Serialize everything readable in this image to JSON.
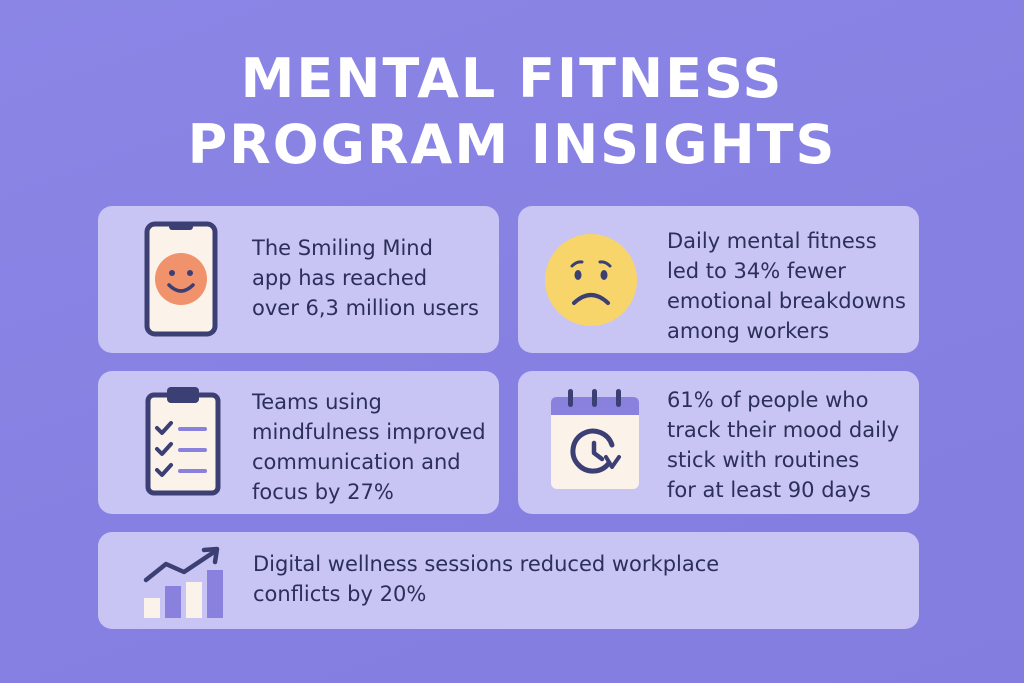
{
  "title": {
    "line1": "MENTAL FITNESS",
    "line2": "PROGRAM INSIGHTS"
  },
  "cards": [
    {
      "icon": "smartphone-smiley-icon",
      "text_lines": [
        "The Smiling Mind",
        "app has reached",
        "over 6,3 million users"
      ]
    },
    {
      "icon": "worried-face-icon",
      "text_lines": [
        "Daily mental fitness",
        "led to 34% fewer",
        "emotional breakdowns",
        "among workers"
      ]
    },
    {
      "icon": "clipboard-checklist-icon",
      "text_lines": [
        "Teams using",
        "mindfulness improved",
        "communication and",
        "focus by 27%"
      ]
    },
    {
      "icon": "calendar-refresh-icon",
      "text_lines": [
        "61% of people who",
        "track their mood daily",
        "stick with routines",
        "for at least 90 days"
      ]
    },
    {
      "icon": "bar-chart-trend-icon",
      "text_lines": [
        "Digital wellness sessions reduced workplace",
        "conflicts by 20%"
      ]
    }
  ],
  "colors": {
    "background": "#8984e4",
    "card": "#c8c4f3",
    "text": "#2c2f58",
    "icon_dark": "#3b3f73",
    "accent_orange": "#f0926b",
    "accent_yellow": "#f7d56a",
    "accent_purple": "#8a80de"
  }
}
